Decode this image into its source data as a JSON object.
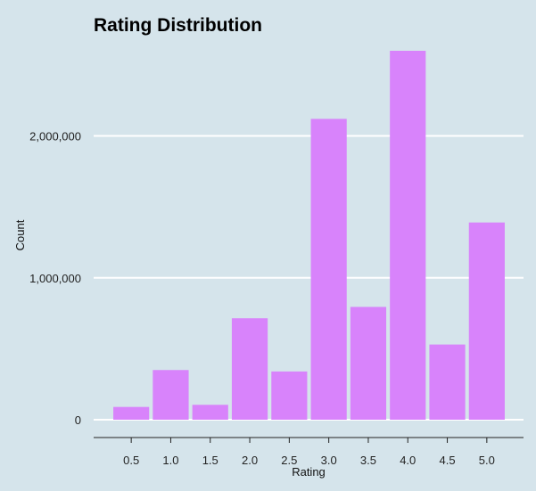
{
  "chart_data": {
    "type": "bar",
    "title": "Rating Distribution",
    "xlabel": "Rating",
    "ylabel": "Count",
    "categories": [
      "0.5",
      "1.0",
      "1.5",
      "2.0",
      "2.5",
      "3.0",
      "3.5",
      "4.0",
      "4.5",
      "5.0"
    ],
    "values": [
      90000,
      350000,
      105000,
      715000,
      340000,
      2120000,
      795000,
      2600000,
      530000,
      1390000
    ],
    "ylim": [
      0,
      2600000
    ],
    "yticks": [
      0,
      1000000,
      2000000
    ],
    "ytick_labels": [
      "0",
      "1,000,000",
      "2,000,000"
    ],
    "grid": "horizontal",
    "colors": {
      "bar": "#d883fb",
      "background": "#d5e4eb",
      "grid": "#ffffff",
      "axis": "#222222"
    }
  }
}
